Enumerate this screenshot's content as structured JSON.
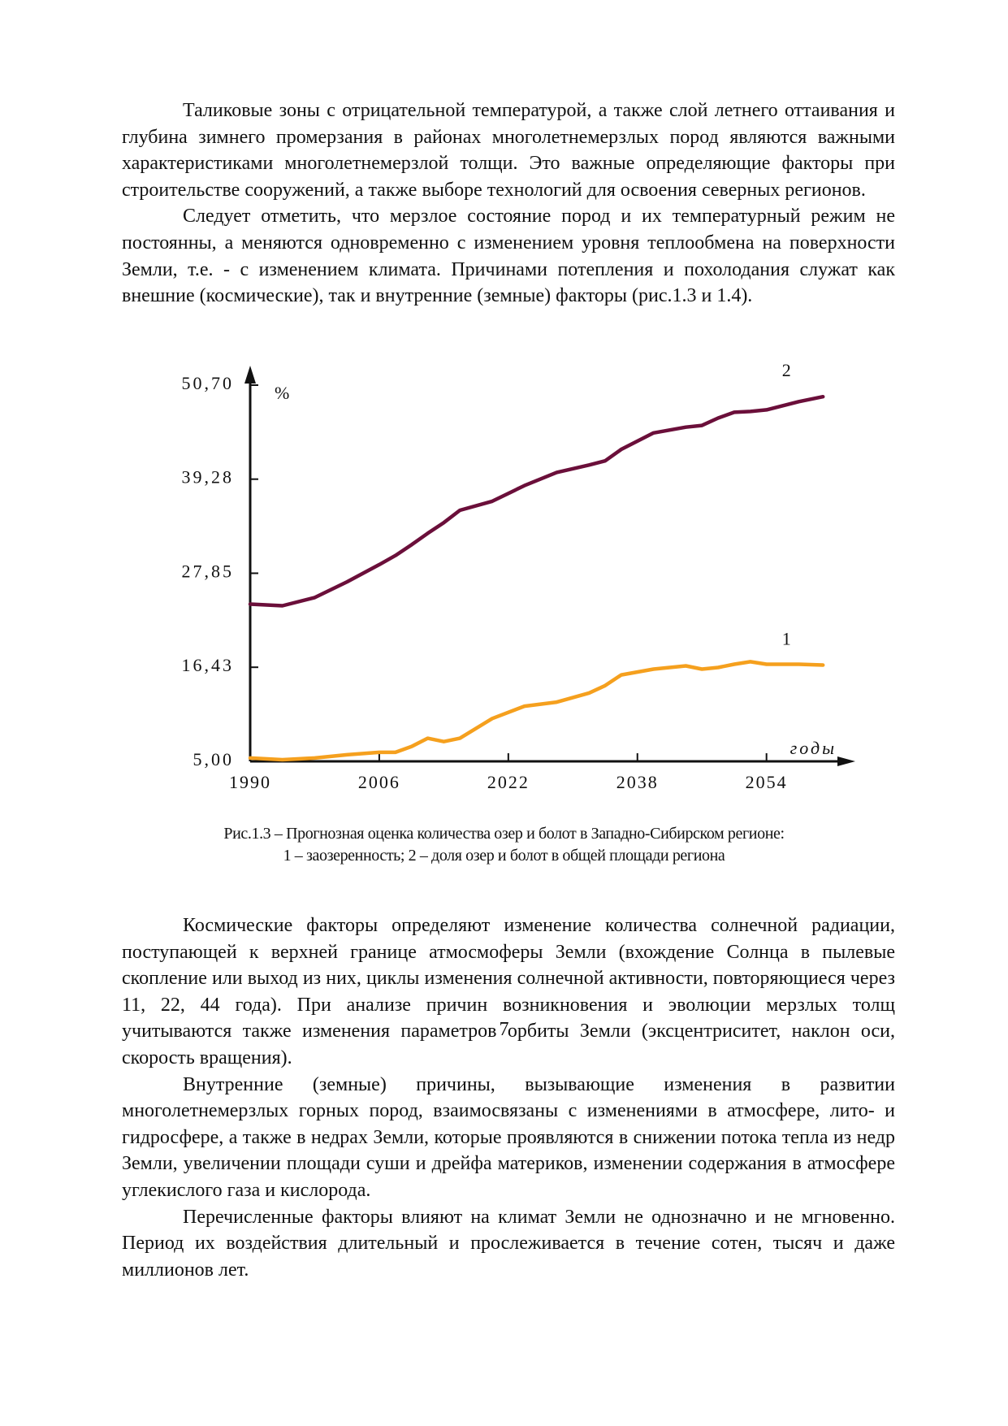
{
  "paragraphs": [
    "Таликовые зоны с отрицательной температурой, а также слой летнего оттаивания и глубина зимнего промерзания в районах многолетнемерзлых пород являются важными характеристиками многолетнемерзлой толщи. Это важные определяющие факторы при строительстве сооружений, а также выборе технологий для освоения северных регионов.",
    "Следует отметить, что мерзлое состояние пород  и их температурный режим не постоянны, а меняются одновременно с изменением уровня теплообмена на поверхности Земли, т.е. - с изменением климата. Причинами потепления и похолодания служат как внешние (космические), так и внутренние (земные) факторы (рис.1.3 и 1.4).",
    "Космические факторы определяют изменение количества солнечной радиации, поступающей к верхней границе атмосмоферы Земли (вхождение Солнца в пылевые скопление или выход из них, циклы изменения солнечной активности, повторяющиеся через 11, 22, 44 года). При анализе причин возникновения и эволюции мерзлых толщ учитываются также изменения параметров орбиты Земли (эксцентриситет, наклон оси, скорость вращения).",
    "Внутренние (земные) причины, вызывающие изменения в развитии многолетнемерзлых горных пород, взаимосвязаны с изменениями в атмосфере, лито- и гидросфере, а также в недрах Земли, которые проявляются в снижении потока тепла из недр Земли, увеличении площади суши и дрейфа материков, изменении содержания в атмосфере углекислого газа и кислорода.",
    "Перечисленные факторы влияют на климат Земли не однозначно и не мгновенно. Период их воздействия длительный и прослеживается в течение сотен, тысяч и даже миллионов лет."
  ],
  "chart_data": {
    "type": "line",
    "y_label": "%",
    "x_label": "годы",
    "x": [
      1990,
      1994,
      1998,
      2002,
      2006,
      2008,
      2010,
      2012,
      2014,
      2016,
      2020,
      2024,
      2028,
      2032,
      2034,
      2036,
      2040,
      2044,
      2046,
      2048,
      2050,
      2052,
      2054,
      2058,
      2061
    ],
    "series": [
      {
        "name": "1",
        "color": "#f5a01e",
        "values": [
          5.4,
          5.2,
          5.4,
          5.8,
          6.1,
          6.1,
          6.8,
          7.8,
          7.4,
          7.8,
          10.2,
          11.7,
          12.2,
          13.3,
          14.2,
          15.5,
          16.2,
          16.6,
          16.2,
          16.4,
          16.8,
          17.1,
          16.8,
          16.8,
          16.7
        ]
      },
      {
        "name": "2",
        "color": "#6b0f3a",
        "values": [
          24.1,
          23.9,
          24.9,
          26.8,
          28.9,
          30.0,
          31.3,
          32.7,
          34.0,
          35.5,
          36.6,
          38.5,
          40.1,
          41.0,
          41.5,
          42.9,
          44.9,
          45.6,
          45.8,
          46.7,
          47.4,
          47.5,
          47.7,
          48.7,
          49.3
        ]
      }
    ],
    "xlim": [
      1990,
      2064
    ],
    "ylim": [
      5.0,
      50.7
    ],
    "xticks": [
      1990,
      2006,
      2022,
      2038,
      2054
    ],
    "yticks": [
      {
        "value": 5.0,
        "label": "5,00"
      },
      {
        "value": 16.43,
        "label": "16,43"
      },
      {
        "value": 27.85,
        "label": "27,85"
      },
      {
        "value": 39.28,
        "label": "39,28"
      },
      {
        "value": 50.7,
        "label": "50,70"
      }
    ],
    "grid": false
  },
  "caption_lines": [
    "Рис.1.3 – Прогнозная оценка количества озер и болот в Западно-Сибирском регионе:",
    "1 – заозеренность; 2 – доля озер и болот в общей площади региона"
  ],
  "page_number": "7"
}
